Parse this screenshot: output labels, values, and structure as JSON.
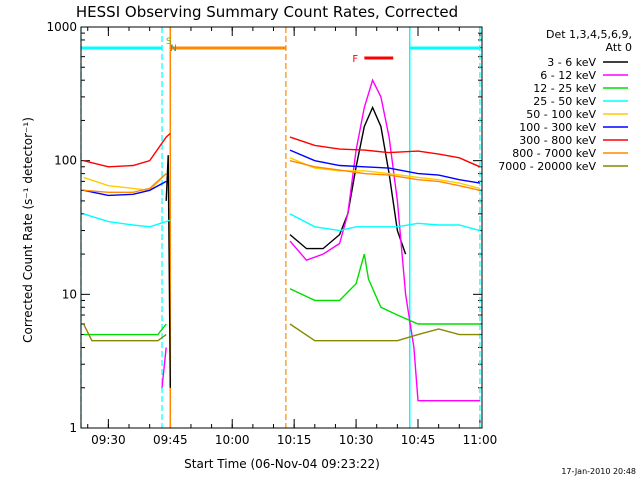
{
  "chart_data": {
    "type": "line",
    "title": "HESSI Observing Summary Count Rates, Corrected",
    "xlabel": "Start Time (06-Nov-04 09:23:22)",
    "ylabel": "Corrected Count Rate (s⁻¹ detector⁻¹)",
    "yscale": "log",
    "xlim_minutes": [
      9.37,
      11.0
    ],
    "ylim": [
      1,
      1000
    ],
    "x_ticks": [
      "09:30",
      "09:45",
      "10:00",
      "10:15",
      "10:30",
      "10:45",
      "11:00"
    ],
    "y_ticks": [
      "1",
      "10",
      "100",
      "1000"
    ],
    "legend_header": [
      "Det 1,3,4,5,6,9,",
      "Att 0"
    ],
    "legend_position": "right",
    "series": [
      {
        "name": "3 - 6 keV",
        "color": "#000000",
        "points": [
          [
            "09:44",
            50
          ],
          [
            "09:44:30",
            110
          ],
          [
            "09:45",
            2
          ],
          [
            "10:14",
            28
          ],
          [
            "10:18",
            22
          ],
          [
            "10:22",
            22
          ],
          [
            "10:26",
            28
          ],
          [
            "10:28",
            40
          ],
          [
            "10:30",
            90
          ],
          [
            "10:32",
            180
          ],
          [
            "10:34",
            250
          ],
          [
            "10:36",
            180
          ],
          [
            "10:38",
            80
          ],
          [
            "10:40",
            30
          ],
          [
            "10:42",
            20
          ]
        ]
      },
      {
        "name": "6 - 12 keV",
        "color": "#ff00ff",
        "points": [
          [
            "09:43",
            2
          ],
          [
            "09:44",
            4
          ],
          [
            "10:14",
            25
          ],
          [
            "10:18",
            18
          ],
          [
            "10:22",
            20
          ],
          [
            "10:26",
            24
          ],
          [
            "10:28",
            40
          ],
          [
            "10:30",
            120
          ],
          [
            "10:32",
            250
          ],
          [
            "10:34",
            400
          ],
          [
            "10:36",
            300
          ],
          [
            "10:38",
            150
          ],
          [
            "10:40",
            50
          ],
          [
            "10:42",
            10
          ],
          [
            "10:44",
            4
          ],
          [
            "10:45",
            1.6
          ],
          [
            "11:00",
            1.6
          ]
        ]
      },
      {
        "name": "12 - 25 keV",
        "color": "#00dd00",
        "points": [
          [
            "09:24",
            5
          ],
          [
            "09:30",
            5
          ],
          [
            "09:36",
            5
          ],
          [
            "09:42",
            5
          ],
          [
            "09:44",
            6
          ],
          [
            "10:14",
            11
          ],
          [
            "10:20",
            9
          ],
          [
            "10:26",
            9
          ],
          [
            "10:30",
            12
          ],
          [
            "10:32",
            20
          ],
          [
            "10:33",
            13
          ],
          [
            "10:36",
            8
          ],
          [
            "10:40",
            7
          ],
          [
            "10:45",
            6
          ],
          [
            "11:00",
            6
          ]
        ]
      },
      {
        "name": "25 - 50 keV",
        "color": "#00ffff",
        "points": [
          [
            "09:24",
            40
          ],
          [
            "09:30",
            35
          ],
          [
            "09:36",
            33
          ],
          [
            "09:40",
            32
          ],
          [
            "09:44",
            35
          ],
          [
            "09:45",
            36
          ],
          [
            "10:14",
            40
          ],
          [
            "10:20",
            32
          ],
          [
            "10:26",
            30
          ],
          [
            "10:30",
            32
          ],
          [
            "10:34",
            32
          ],
          [
            "10:40",
            32
          ],
          [
            "10:45",
            34
          ],
          [
            "10:50",
            33
          ],
          [
            "10:55",
            33
          ],
          [
            "11:00",
            30
          ]
        ]
      },
      {
        "name": "50 - 100 keV",
        "color": "#ffcc00",
        "points": [
          [
            "09:24",
            75
          ],
          [
            "09:30",
            65
          ],
          [
            "09:36",
            62
          ],
          [
            "09:40",
            60
          ],
          [
            "09:44",
            80
          ],
          [
            "10:14",
            105
          ],
          [
            "10:20",
            88
          ],
          [
            "10:26",
            84
          ],
          [
            "10:32",
            84
          ],
          [
            "10:38",
            80
          ],
          [
            "10:45",
            75
          ],
          [
            "10:50",
            72
          ],
          [
            "10:55",
            68
          ],
          [
            "11:00",
            62
          ]
        ]
      },
      {
        "name": "100 - 300 keV",
        "color": "#0000ff",
        "points": [
          [
            "09:24",
            60
          ],
          [
            "09:30",
            55
          ],
          [
            "09:36",
            56
          ],
          [
            "09:40",
            60
          ],
          [
            "09:44",
            70
          ],
          [
            "10:14",
            120
          ],
          [
            "10:20",
            100
          ],
          [
            "10:26",
            92
          ],
          [
            "10:32",
            90
          ],
          [
            "10:38",
            88
          ],
          [
            "10:45",
            80
          ],
          [
            "10:50",
            78
          ],
          [
            "10:55",
            72
          ],
          [
            "11:00",
            68
          ]
        ]
      },
      {
        "name": "300 - 800 keV",
        "color": "#ff0000",
        "points": [
          [
            "09:24",
            100
          ],
          [
            "09:30",
            90
          ],
          [
            "09:36",
            92
          ],
          [
            "09:40",
            100
          ],
          [
            "09:44",
            150
          ],
          [
            "09:45",
            160
          ],
          [
            "10:14",
            150
          ],
          [
            "10:20",
            130
          ],
          [
            "10:26",
            122
          ],
          [
            "10:32",
            120
          ],
          [
            "10:38",
            115
          ],
          [
            "10:45",
            118
          ],
          [
            "10:50",
            112
          ],
          [
            "10:55",
            105
          ],
          [
            "11:00",
            90
          ]
        ]
      },
      {
        "name": "800 - 7000 keV",
        "color": "#ff8800",
        "points": [
          [
            "09:24",
            60
          ],
          [
            "09:30",
            58
          ],
          [
            "09:36",
            58
          ],
          [
            "09:40",
            62
          ],
          [
            "09:44",
            80
          ],
          [
            "10:14",
            100
          ],
          [
            "10:20",
            90
          ],
          [
            "10:26",
            85
          ],
          [
            "10:32",
            80
          ],
          [
            "10:38",
            78
          ],
          [
            "10:45",
            72
          ],
          [
            "10:50",
            70
          ],
          [
            "10:55",
            65
          ],
          [
            "11:00",
            60
          ]
        ]
      },
      {
        "name": "7000 - 20000 keV",
        "color": "#888800",
        "points": [
          [
            "09:24",
            6
          ],
          [
            "09:26",
            4.5
          ],
          [
            "09:30",
            4.5
          ],
          [
            "09:36",
            4.5
          ],
          [
            "09:42",
            4.5
          ],
          [
            "09:44",
            5
          ],
          [
            "10:14",
            6
          ],
          [
            "10:20",
            4.5
          ],
          [
            "10:26",
            4.5
          ],
          [
            "10:32",
            4.5
          ],
          [
            "10:40",
            4.5
          ],
          [
            "10:45",
            5
          ],
          [
            "10:50",
            5.5
          ],
          [
            "10:55",
            5
          ],
          [
            "11:00",
            5
          ]
        ]
      }
    ],
    "flags": [
      {
        "label": "S",
        "color": "#88aa00",
        "from": "09:43",
        "to": "09:43"
      },
      {
        "label": "N",
        "color": "#00aaaa",
        "from": "09:44",
        "to": "09:44"
      },
      {
        "label": "F",
        "color": "#ff0000",
        "from": "10:32",
        "to": "10:39"
      }
    ],
    "intervals": [
      {
        "color": "#00ffff",
        "from": "09:23",
        "to": "09:43",
        "kind": "night"
      },
      {
        "color": "#ff8800",
        "from": "09:45",
        "to": "10:13",
        "kind": "saa"
      },
      {
        "color": "#00ffff",
        "from": "10:43",
        "to": "11:00",
        "kind": "night"
      }
    ],
    "timestamp": "17-Jan-2010 20:48"
  }
}
